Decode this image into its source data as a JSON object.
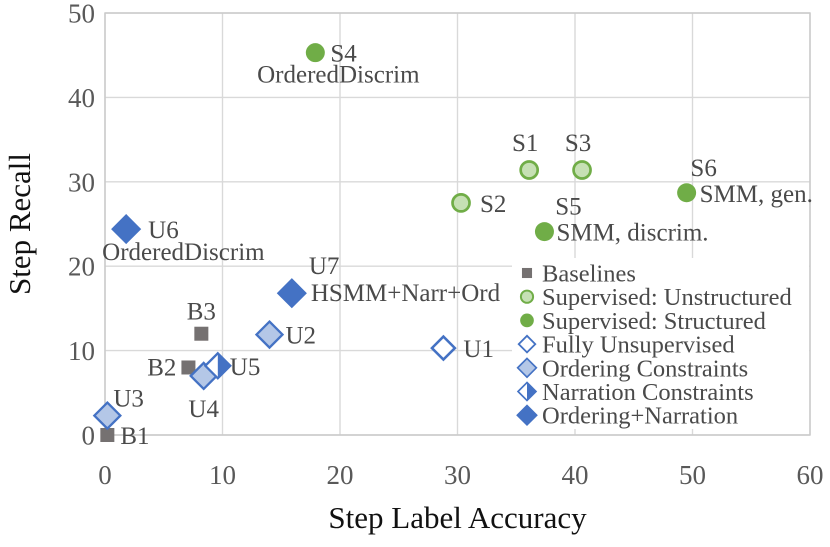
{
  "colors": {
    "green": "#70AD47",
    "green_light": "#C6E0B4",
    "blue": "#4472C4",
    "blue_light": "#B4C7E7",
    "gray": "#757171",
    "grid": "#D9D9D9",
    "border": "#C9C9C9",
    "tick_text": "#595959",
    "label_text": "#4A4A4A",
    "title_text": "#111111",
    "white": "#FFFFFF"
  },
  "chart_data": {
    "type": "scatter",
    "title": "",
    "xlabel": "Step Label Accuracy",
    "ylabel": "Step Recall",
    "xlim": [
      0,
      60
    ],
    "ylim": [
      0,
      50
    ],
    "xticks": [
      0,
      10,
      20,
      30,
      40,
      50,
      60
    ],
    "yticks": [
      0,
      10,
      20,
      30,
      40,
      50
    ],
    "grid": true,
    "legend": {
      "position": "inside-bottom-right",
      "entries": [
        {
          "series": "baselines",
          "label": "Baselines"
        },
        {
          "series": "sup_unstructured",
          "label": "Supervised: Unstructured"
        },
        {
          "series": "sup_structured",
          "label": "Supervised: Structured"
        },
        {
          "series": "fully_unsupervised",
          "label": "Fully Unsupervised"
        },
        {
          "series": "ordering",
          "label": "Ordering Constraints"
        },
        {
          "series": "narration",
          "label": "Narration Constraints"
        },
        {
          "series": "ordering_narration",
          "label": "Ordering+Narration"
        }
      ]
    },
    "series": [
      {
        "key": "baselines",
        "name": "Baselines",
        "marker": "square-gray",
        "points": [
          {
            "id": "B1",
            "x": 0.2,
            "y": 0,
            "label": "B1",
            "lp": {
              "dx": 13,
              "dy": 9,
              "anchor": "start"
            }
          },
          {
            "id": "B2",
            "x": 7.1,
            "y": 8.0,
            "label": "B2",
            "lp": {
              "dx": -12,
              "dy": 8,
              "anchor": "end"
            }
          },
          {
            "id": "B3",
            "x": 8.2,
            "y": 12.0,
            "label": "B3",
            "lp": {
              "dx": 0,
              "dy": -14,
              "anchor": "middle"
            }
          }
        ]
      },
      {
        "key": "sup_unstructured",
        "name": "Supervised: Unstructured",
        "marker": "circle-light-green",
        "points": [
          {
            "id": "S1",
            "x": 36.1,
            "y": 31.4,
            "label": "S1",
            "lp": {
              "dx": -4,
              "dy": -19,
              "anchor": "middle"
            }
          },
          {
            "id": "S2",
            "x": 30.3,
            "y": 27.5,
            "label": "S2",
            "lp": {
              "dx": 19,
              "dy": 9,
              "anchor": "start"
            }
          },
          {
            "id": "S3",
            "x": 40.6,
            "y": 31.4,
            "label": "S3",
            "lp": {
              "dx": -4,
              "dy": -19,
              "anchor": "middle"
            }
          }
        ]
      },
      {
        "key": "sup_structured",
        "name": "Supervised: Structured",
        "marker": "circle-green",
        "points": [
          {
            "id": "S4",
            "x": 17.9,
            "y": 45.3,
            "label": "S4",
            "lp": {
              "dx": 15,
              "dy": 9,
              "anchor": "start"
            },
            "sublabel": "OrderedDiscrim",
            "slp": {
              "dx": 23,
              "dy": 30,
              "anchor": "middle"
            }
          },
          {
            "id": "S5",
            "x": 37.4,
            "y": 24.1,
            "label": "S5",
            "lp": {
              "dx": 24,
              "dy": -17,
              "anchor": "middle"
            },
            "sublabel": "SMM, discrim.",
            "slp": {
              "dx": 12,
              "dy": 9,
              "anchor": "start"
            }
          },
          {
            "id": "S6",
            "x": 49.5,
            "y": 28.7,
            "label": "S6",
            "lp": {
              "dx": 17,
              "dy": -17,
              "anchor": "middle"
            },
            "sublabel": "SMM, gen.",
            "slp": {
              "dx": 13,
              "dy": 9,
              "anchor": "start"
            }
          }
        ]
      },
      {
        "key": "fully_unsupervised",
        "name": "Fully Unsupervised",
        "marker": "diamond-hollow",
        "points": [
          {
            "id": "U1",
            "x": 28.8,
            "y": 10.3,
            "label": "U1",
            "lp": {
              "dx": 20,
              "dy": 9,
              "anchor": "start"
            }
          }
        ]
      },
      {
        "key": "ordering",
        "name": "Ordering Constraints",
        "marker": "diamond-light-blue",
        "points": [
          {
            "id": "U2",
            "x": 14.0,
            "y": 11.9,
            "label": "U2",
            "lp": {
              "dx": 16,
              "dy": 9,
              "anchor": "start"
            }
          },
          {
            "id": "U3",
            "x": 0.2,
            "y": 2.3,
            "label": "U3",
            "lp": {
              "dx": 6,
              "dy": -9,
              "anchor": "start"
            }
          },
          {
            "id": "U4",
            "x": 8.4,
            "y": 7.0,
            "label": "U4",
            "lp": {
              "dx": 0,
              "dy": 41,
              "anchor": "middle"
            }
          }
        ]
      },
      {
        "key": "narration",
        "name": "Narration Constraints",
        "marker": "diamond-half-blue",
        "points": [
          {
            "id": "U5",
            "x": 9.6,
            "y": 8.2,
            "label": "U5",
            "lp": {
              "dx": 12,
              "dy": 9,
              "anchor": "start"
            }
          }
        ]
      },
      {
        "key": "ordering_narration",
        "name": "Ordering+Narration",
        "marker": "diamond-blue",
        "points": [
          {
            "id": "U6",
            "x": 1.8,
            "y": 24.4,
            "label": "U6",
            "lp": {
              "dx": 22,
              "dy": 9,
              "anchor": "start"
            },
            "sublabel": "OrderedDiscrim",
            "slp": {
              "dx": -24,
              "dy": 31,
              "anchor": "start"
            }
          },
          {
            "id": "U7",
            "x": 15.9,
            "y": 16.8,
            "label": "U7",
            "lp": {
              "dx": 17,
              "dy": -19,
              "anchor": "start"
            },
            "sublabel": "HSMM+Narr+Ord",
            "slp": {
              "dx": 19,
              "dy": 8,
              "anchor": "start"
            }
          }
        ]
      }
    ]
  }
}
